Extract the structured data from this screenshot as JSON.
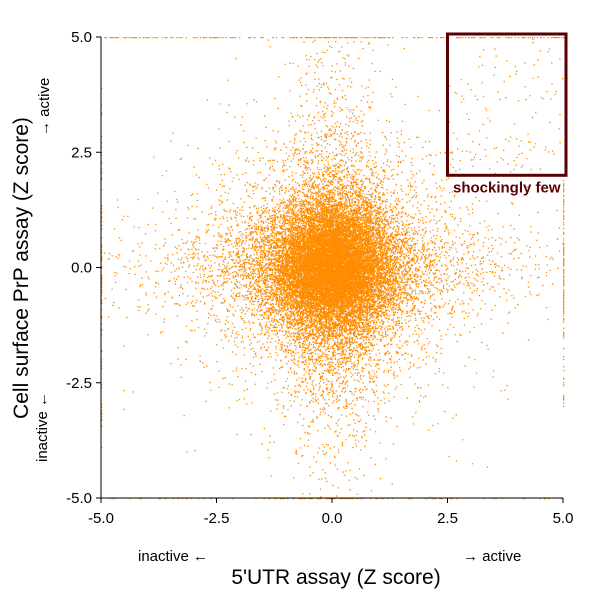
{
  "chart_data": {
    "type": "scatter",
    "xlabel": "5'UTR assay (Z score)",
    "ylabel": "Cell surface PrP assay (Z score)",
    "xlim": [
      -5.0,
      5.0
    ],
    "ylim": [
      -5.0,
      5.0
    ],
    "xticks": [
      "-5.0",
      "-2.5",
      "0.0",
      "2.5",
      "5.0"
    ],
    "yticks": [
      "-5.0",
      "-2.5",
      "0.0",
      "2.5",
      "5.0"
    ],
    "x_low_label": "inactive ←",
    "x_high_label": "→ active",
    "y_low_label": "inactive ←",
    "y_high_label": "→ active",
    "grid": false,
    "point_color": "#ff8c00",
    "point_count_approx": 24000,
    "distribution": {
      "center": [
        0.0,
        0.0
      ],
      "core_std": [
        0.7,
        0.75
      ],
      "tails": "cross-shaped spread along both axes",
      "values_clipped_to_limits": true
    },
    "annotation": {
      "text": "shockingly few",
      "region_x": [
        2.5,
        5.0
      ],
      "region_y": [
        2.0,
        5.0
      ],
      "color": "#5a0000"
    }
  }
}
